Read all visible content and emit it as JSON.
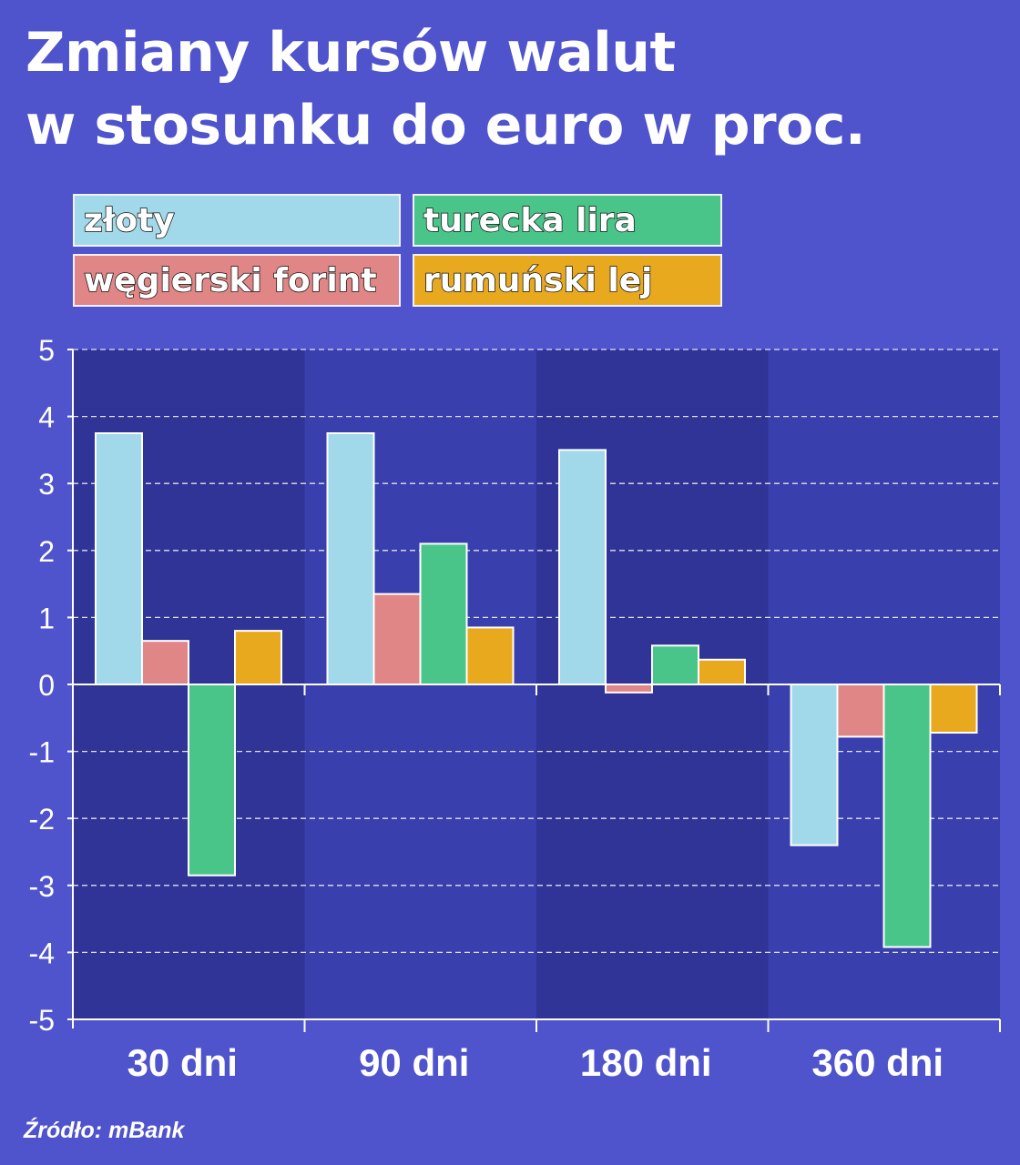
{
  "title_lines": [
    "Zmiany kursów walut",
    "w stosunku do euro w proc."
  ],
  "source": "Źródło: mBank",
  "colors": {
    "background": "#4f53cc",
    "panel_dark": "#2f3496",
    "panel_light": "#3a3fae",
    "zloty": "#a1d8ea",
    "forint": "#e08686",
    "lira": "#4ac58a",
    "lej": "#e8a91e"
  },
  "chart_data": {
    "type": "bar",
    "categories": [
      "30 dni",
      "90 dni",
      "180 dni",
      "360 dni"
    ],
    "series": [
      {
        "name": "złoty",
        "color": "#a1d8ea",
        "values": [
          3.75,
          3.75,
          3.5,
          -2.4
        ]
      },
      {
        "name": "węgierski forint",
        "color": "#e08686",
        "values": [
          0.65,
          1.35,
          -0.12,
          -0.78
        ]
      },
      {
        "name": "turecka lira",
        "color": "#4ac58a",
        "values": [
          -2.85,
          2.1,
          0.58,
          -3.92
        ]
      },
      {
        "name": "rumuński lej",
        "color": "#e8a91e",
        "values": [
          0.8,
          0.85,
          0.37,
          -0.72
        ]
      }
    ],
    "title": "Zmiany kursów walut w stosunku do euro w proc.",
    "xlabel": "",
    "ylabel": "",
    "ylim": [
      -5,
      5
    ],
    "yticks": [
      "5",
      "4",
      "3",
      "2",
      "1",
      "0",
      "-1",
      "-2",
      "-3",
      "-4",
      "-5"
    ],
    "grid": true,
    "legend_position": "top"
  }
}
